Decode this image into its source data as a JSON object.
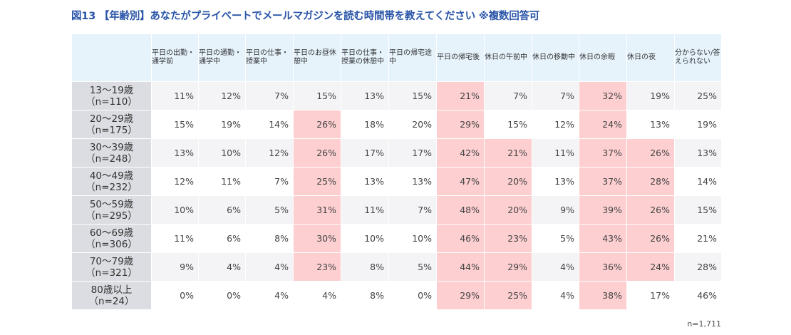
{
  "title": "図13 【年齢別】あなたがプライベートでメールマガジンを読む時間帯を教えてください ※複数回答可",
  "sample_note": "n=1,711",
  "highlight_color": "#fdcfd1",
  "chart_data": {
    "type": "table",
    "columns": [
      "平日の出勤・通学前",
      "平日の通勤・通学中",
      "平日の仕事・授業中",
      "平日のお昼休憩中",
      "平日の仕事・授業の休憩中",
      "平日の帰宅途中",
      "平日の帰宅後",
      "休日の午前中",
      "休日の移動中",
      "休日の余暇",
      "休日の夜",
      "分からない/答えられない"
    ],
    "rows": [
      {
        "age": "13～19歳",
        "n": "（n=110）",
        "values": [
          "11%",
          "12%",
          "7%",
          "15%",
          "13%",
          "15%",
          "21%",
          "7%",
          "7%",
          "32%",
          "19%",
          "25%"
        ],
        "highlight": [
          6,
          9
        ]
      },
      {
        "age": "20～29歳",
        "n": "（n=175）",
        "values": [
          "15%",
          "19%",
          "14%",
          "26%",
          "18%",
          "20%",
          "29%",
          "15%",
          "12%",
          "24%",
          "13%",
          "19%"
        ],
        "highlight": [
          3,
          6,
          9
        ]
      },
      {
        "age": "30～39歳",
        "n": "（n=248）",
        "values": [
          "13%",
          "10%",
          "12%",
          "26%",
          "17%",
          "17%",
          "42%",
          "21%",
          "11%",
          "37%",
          "26%",
          "13%"
        ],
        "highlight": [
          3,
          6,
          7,
          9,
          10
        ]
      },
      {
        "age": "40～49歳",
        "n": "（n=232）",
        "values": [
          "12%",
          "11%",
          "7%",
          "25%",
          "13%",
          "13%",
          "47%",
          "20%",
          "13%",
          "37%",
          "28%",
          "14%"
        ],
        "highlight": [
          3,
          6,
          7,
          9,
          10
        ]
      },
      {
        "age": "50～59歳",
        "n": "（n=295）",
        "values": [
          "10%",
          "6%",
          "5%",
          "31%",
          "11%",
          "7%",
          "48%",
          "20%",
          "9%",
          "39%",
          "26%",
          "15%"
        ],
        "highlight": [
          3,
          6,
          7,
          9,
          10
        ]
      },
      {
        "age": "60～69歳",
        "n": "（n=306）",
        "values": [
          "11%",
          "6%",
          "8%",
          "30%",
          "10%",
          "10%",
          "46%",
          "23%",
          "5%",
          "43%",
          "26%",
          "21%"
        ],
        "highlight": [
          3,
          6,
          7,
          9,
          10
        ]
      },
      {
        "age": "70～79歳",
        "n": "（n=321）",
        "values": [
          "9%",
          "4%",
          "4%",
          "23%",
          "8%",
          "5%",
          "44%",
          "29%",
          "4%",
          "36%",
          "24%",
          "28%"
        ],
        "highlight": [
          3,
          6,
          7,
          9,
          10
        ]
      },
      {
        "age": "80歳以上",
        "n": "（n=24）",
        "values": [
          "0%",
          "0%",
          "4%",
          "4%",
          "8%",
          "0%",
          "29%",
          "25%",
          "4%",
          "38%",
          "17%",
          "46%"
        ],
        "highlight": [
          6,
          7,
          9
        ]
      }
    ]
  }
}
